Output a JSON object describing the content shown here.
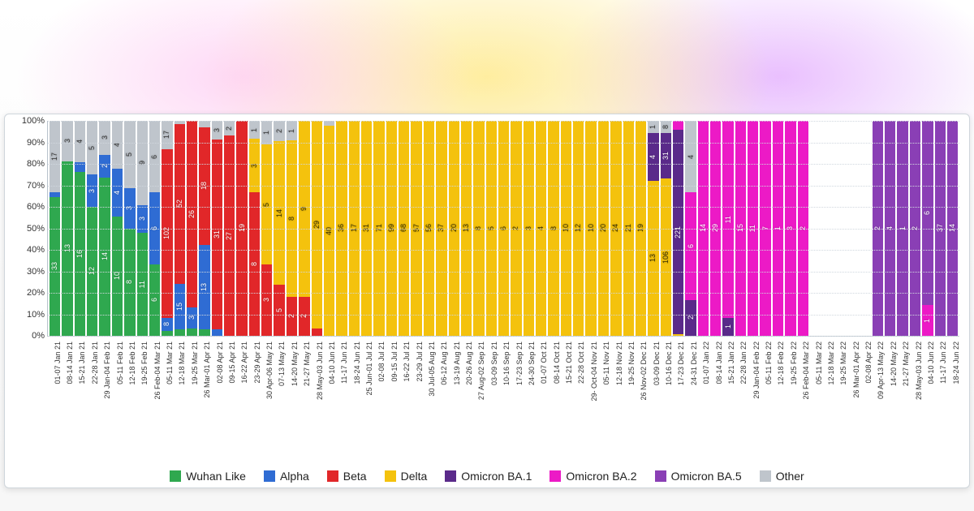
{
  "chart": {
    "type": "stacked-bar-100pct",
    "background_color": "#ffffff",
    "grid_color": "#d0d7de",
    "label_fontsize": 11,
    "xlabel_fontsize": 9,
    "legend_fontsize": 14,
    "xlabel_rotation_deg": -90,
    "ylim": [
      0,
      100
    ],
    "ytick_step": 10,
    "ytick_suffix": "%",
    "variants": [
      {
        "key": "wuhan",
        "label": "Wuhan Like",
        "color": "#2fa84f"
      },
      {
        "key": "alpha",
        "label": "Alpha",
        "color": "#2f6cd3"
      },
      {
        "key": "beta",
        "label": "Beta",
        "color": "#e12729"
      },
      {
        "key": "delta",
        "label": "Delta",
        "color": "#f4c20d"
      },
      {
        "key": "ba1",
        "label": "Omicron BA.1",
        "color": "#5a2a8a"
      },
      {
        "key": "ba2",
        "label": "Omicron BA.2",
        "color": "#ec1ac6"
      },
      {
        "key": "ba5",
        "label": "Omicron BA.5",
        "color": "#8a3fb5"
      },
      {
        "key": "other",
        "label": "Other",
        "color": "#bfc5cc"
      }
    ],
    "weeks": [
      {
        "label": "01-07 Jan 21",
        "counts": {
          "wuhan": 33,
          "alpha": 1,
          "other": 17
        }
      },
      {
        "label": "08-14 Jan 21",
        "counts": {
          "wuhan": 13,
          "other": 3
        }
      },
      {
        "label": "15-21 Jan 21",
        "counts": {
          "wuhan": 16,
          "alpha": 1,
          "other": 4
        }
      },
      {
        "label": "22-28 Jan 21",
        "counts": {
          "wuhan": 12,
          "alpha": 3,
          "other": 5
        }
      },
      {
        "label": "29 Jan-04 Feb 21",
        "counts": {
          "wuhan": 14,
          "alpha": 2,
          "other": 3
        }
      },
      {
        "label": "05-11 Feb 21",
        "counts": {
          "wuhan": 10,
          "alpha": 4,
          "other": 4
        }
      },
      {
        "label": "12-18 Feb 21",
        "counts": {
          "wuhan": 8,
          "alpha": 3,
          "other": 5
        }
      },
      {
        "label": "19-25 Feb 21",
        "counts": {
          "wuhan": 11,
          "alpha": 3,
          "other": 9
        }
      },
      {
        "label": "26 Feb-04 Mar 21",
        "counts": {
          "wuhan": 6,
          "alpha": 6,
          "other": 6
        }
      },
      {
        "label": "05-11 Mar 21",
        "counts": {
          "wuhan": 3,
          "alpha": 8,
          "beta": 102,
          "other": 17
        }
      },
      {
        "label": "12-18 Mar 21",
        "counts": {
          "wuhan": 2,
          "alpha": 15,
          "beta": 52,
          "other": 1
        }
      },
      {
        "label": "19-25 Mar 21",
        "counts": {
          "wuhan": 1,
          "alpha": 3,
          "beta": 26
        }
      },
      {
        "label": "26 Mar-01 Apr 21",
        "counts": {
          "wuhan": 1,
          "alpha": 13,
          "beta": 18,
          "other": 1
        }
      },
      {
        "label": "02-08 Apr 21",
        "counts": {
          "alpha": 1,
          "beta": 31,
          "other": 3
        }
      },
      {
        "label": "09-15 Apr 21",
        "counts": {
          "beta": 27,
          "other": 2
        }
      },
      {
        "label": "16-22 Apr 21",
        "counts": {
          "beta": 19
        }
      },
      {
        "label": "23-29 Apr 21",
        "counts": {
          "beta": 8,
          "delta": 3,
          "other": 1
        }
      },
      {
        "label": "30 Apr-06 May 21",
        "counts": {
          "beta": 3,
          "delta": 5,
          "other": 1
        }
      },
      {
        "label": "07-13 May 21",
        "counts": {
          "beta": 5,
          "delta": 14,
          "other": 2
        }
      },
      {
        "label": "14-20 May 21",
        "counts": {
          "beta": 2,
          "delta": 8,
          "other": 1
        }
      },
      {
        "label": "21-27 May 21",
        "counts": {
          "beta": 2,
          "delta": 9
        }
      },
      {
        "label": "28 May-03 Jun 21",
        "counts": {
          "beta": 1,
          "delta": 29
        }
      },
      {
        "label": "04-10 Jun 21",
        "counts": {
          "delta": 40,
          "other": 1
        }
      },
      {
        "label": "11-17 Jun 21",
        "counts": {
          "delta": 36
        }
      },
      {
        "label": "18-24 Jun 21",
        "counts": {
          "delta": 17
        }
      },
      {
        "label": "25 Jun-01 Jul 21",
        "counts": {
          "delta": 31
        }
      },
      {
        "label": "02-08 Jul 21",
        "counts": {
          "delta": 71
        }
      },
      {
        "label": "09-15 Jul 21",
        "counts": {
          "delta": 99
        }
      },
      {
        "label": "16-22 Jul 21",
        "counts": {
          "delta": 68
        }
      },
      {
        "label": "23-29 Jul 21",
        "counts": {
          "delta": 57
        }
      },
      {
        "label": "30 Jul-05 Aug 21",
        "counts": {
          "delta": 56
        }
      },
      {
        "label": "06-12 Aug 21",
        "counts": {
          "delta": 37
        }
      },
      {
        "label": "13-19 Aug 21",
        "counts": {
          "delta": 20
        }
      },
      {
        "label": "20-26 Aug 21",
        "counts": {
          "delta": 13
        }
      },
      {
        "label": "27 Aug-02 Sep 21",
        "counts": {
          "delta": 8
        }
      },
      {
        "label": "03-09 Sep 21",
        "counts": {
          "delta": 5
        }
      },
      {
        "label": "10-16 Sep 21",
        "counts": {
          "delta": 6
        }
      },
      {
        "label": "17-23 Sep 21",
        "counts": {
          "delta": 2
        }
      },
      {
        "label": "24-30 Sep 21",
        "counts": {
          "delta": 3
        }
      },
      {
        "label": "01-07 Oct 21",
        "counts": {
          "delta": 4
        }
      },
      {
        "label": "08-14 Oct 21",
        "counts": {
          "delta": 8
        }
      },
      {
        "label": "15-21 Oct 21",
        "counts": {
          "delta": 10
        }
      },
      {
        "label": "22-28 Oct 21",
        "counts": {
          "delta": 12
        }
      },
      {
        "label": "29- Oct-04 Nov 21",
        "counts": {
          "delta": 10
        }
      },
      {
        "label": "05-11 Nov 21",
        "counts": {
          "delta": 20
        }
      },
      {
        "label": "12-18 Nov 21",
        "counts": {
          "delta": 24
        }
      },
      {
        "label": "19-25 Nov 21",
        "counts": {
          "delta": 21
        }
      },
      {
        "label": "26 Nov-02 Dec 21",
        "counts": {
          "delta": 19
        }
      },
      {
        "label": "03-09 Dec 21",
        "counts": {
          "delta": 13,
          "ba1": 4,
          "other": 1
        }
      },
      {
        "label": "10-16 Dec 21",
        "counts": {
          "delta": 106,
          "ba1": 31,
          "other": 8
        }
      },
      {
        "label": "17-23 Dec 21",
        "counts": {
          "delta": 2,
          "ba1": 221,
          "ba2": 10
        }
      },
      {
        "label": "24-31 Dec 21",
        "counts": {
          "ba1": 2,
          "ba2": 6,
          "other": 4
        }
      },
      {
        "label": "01-07 Jan 22",
        "counts": {
          "ba2": 14
        }
      },
      {
        "label": "08-14 Jan 22",
        "counts": {
          "ba2": 29
        }
      },
      {
        "label": "15-21 Jan 22",
        "counts": {
          "ba1": 1,
          "ba2": 11
        }
      },
      {
        "label": "22-28 Jan 22",
        "counts": {
          "ba2": 15
        }
      },
      {
        "label": "29 Jan-04 Feb 22",
        "counts": {
          "ba2": 11
        }
      },
      {
        "label": "05-11 Feb 22",
        "counts": {
          "ba2": 7
        }
      },
      {
        "label": "12-18 Feb 22",
        "counts": {
          "ba2": 1
        }
      },
      {
        "label": "19-25 Feb 22",
        "counts": {
          "ba2": 3
        }
      },
      {
        "label": "26 Feb-04 Mar 22",
        "counts": {
          "ba2": 2
        }
      },
      {
        "label": "05-11 Mar 22",
        "counts": {}
      },
      {
        "label": "12-18 Mar 22",
        "counts": {}
      },
      {
        "label": "19-25 Mar 22",
        "counts": {}
      },
      {
        "label": "26 Mar-01 Apr 22",
        "counts": {}
      },
      {
        "label": "02-08 Apr 22",
        "counts": {}
      },
      {
        "label": "09 Apr-13 May 22",
        "counts": {
          "ba5": 2
        }
      },
      {
        "label": "14-20 May 22",
        "counts": {
          "ba5": 4
        }
      },
      {
        "label": "21-27 May 22",
        "counts": {
          "ba5": 1
        }
      },
      {
        "label": "28 May-03 Jun 22",
        "counts": {
          "ba5": 2
        }
      },
      {
        "label": "04-10 Jun 22",
        "counts": {
          "ba2": 1,
          "ba5": 6
        }
      },
      {
        "label": "11-17 Jun 22",
        "counts": {
          "ba5": 37
        }
      },
      {
        "label": "18-24 Jun 22",
        "counts": {
          "ba5": 14
        }
      }
    ]
  }
}
